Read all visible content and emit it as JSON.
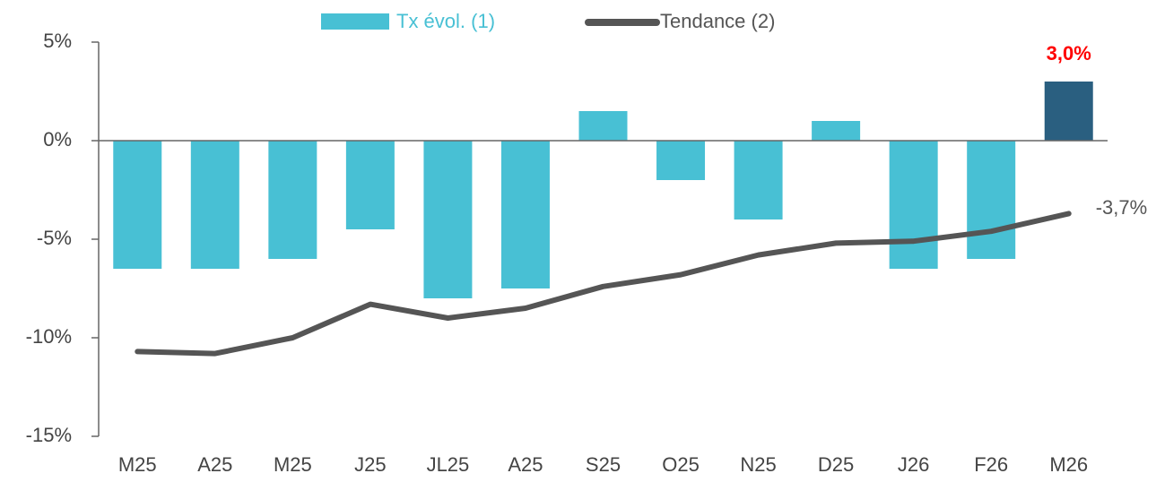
{
  "chart_data": {
    "type": "bar_line",
    "categories": [
      "M25",
      "A25",
      "M25",
      "J25",
      "JL25",
      "A25",
      "S25",
      "O25",
      "N25",
      "D25",
      "J26",
      "F26",
      "M26"
    ],
    "series": [
      {
        "name": "Tx évol. (1)",
        "type": "bar",
        "color": "#48c0d4",
        "colors": [
          "#48c0d4",
          "#48c0d4",
          "#48c0d4",
          "#48c0d4",
          "#48c0d4",
          "#48c0d4",
          "#48c0d4",
          "#48c0d4",
          "#48c0d4",
          "#48c0d4",
          "#48c0d4",
          "#48c0d4",
          "#2a5f80"
        ],
        "values": [
          -6.5,
          -6.5,
          -6,
          -4.5,
          -8,
          -7.5,
          1.5,
          -2,
          -4,
          1,
          -6.5,
          -6,
          3.0
        ],
        "value_labels": [
          null,
          null,
          null,
          null,
          null,
          null,
          null,
          null,
          null,
          null,
          null,
          null,
          "3,0%"
        ],
        "label_color": "#ff0000"
      },
      {
        "name": "Tendance (2)",
        "type": "line",
        "color": "#555555",
        "values": [
          -10.7,
          -10.8,
          -10.0,
          -8.3,
          -9.0,
          -8.5,
          -7.4,
          -6.8,
          -5.8,
          -5.2,
          -5.1,
          -4.6,
          -3.7
        ],
        "value_labels": [
          null,
          null,
          null,
          null,
          null,
          null,
          null,
          null,
          null,
          null,
          null,
          null,
          "-3,7%"
        ],
        "label_color": "#555555"
      }
    ],
    "ylim": [
      -15,
      5
    ],
    "yticks": [
      {
        "value": 5,
        "label": "5%"
      },
      {
        "value": 0,
        "label": "0%"
      },
      {
        "value": -5,
        "label": "-5%"
      },
      {
        "value": -10,
        "label": "-10%"
      },
      {
        "value": -15,
        "label": "-15%"
      }
    ],
    "grid": false,
    "legend": "top"
  }
}
